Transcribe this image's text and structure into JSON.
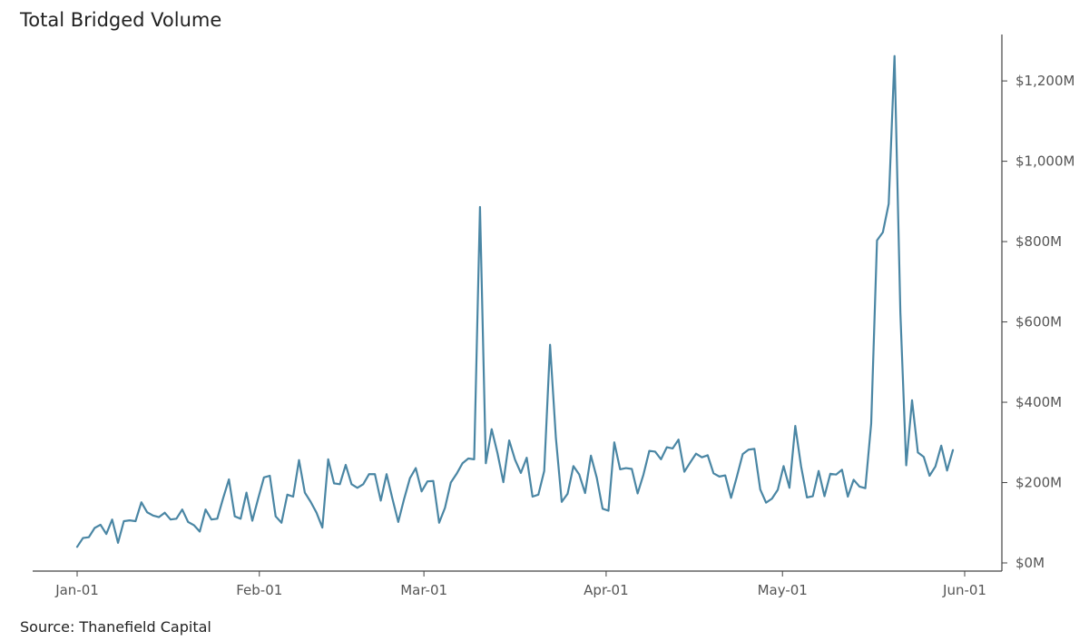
{
  "chart_data": {
    "type": "line",
    "title": "Total Bridged Volume",
    "source": "Source: Thanefield Capital",
    "xlabel": "",
    "ylabel": "",
    "y_unit": "USD millions",
    "ylim": [
      0,
      1300
    ],
    "x_ticks": [
      "Jan-01",
      "Feb-01",
      "Mar-01",
      "Apr-01",
      "May-01",
      "Jun-01"
    ],
    "y_ticks": [
      0,
      200,
      400,
      600,
      800,
      1000,
      1200
    ],
    "y_tick_labels": [
      "$0M",
      "$200M",
      "$400M",
      "$600M",
      "$800M",
      "$1,000M",
      "$1,200M"
    ],
    "y_axis_position": "right",
    "grid": false,
    "legend": "none",
    "line_color": "#4a86a4",
    "x_start": "2021-01-01",
    "x_end": "2021-05-29",
    "series": [
      {
        "values": [
          40,
          62,
          64,
          87,
          95,
          72,
          108,
          50,
          104,
          106,
          104,
          151,
          126,
          118,
          114,
          125,
          108,
          110,
          133,
          102,
          94,
          78,
          133,
          108,
          110,
          161,
          208,
          116,
          110,
          175,
          105,
          160,
          213,
          217,
          116,
          100,
          170,
          165,
          256,
          175,
          152,
          125,
          88,
          258,
          198,
          196,
          244,
          196,
          187,
          196,
          221,
          221,
          155,
          221,
          160,
          102,
          159,
          211,
          236,
          178,
          203,
          204,
          100,
          137,
          200,
          222,
          248,
          260,
          258,
          886,
          248,
          333,
          273,
          201,
          305,
          257,
          224,
          262,
          165,
          170,
          229,
          543,
          311,
          152,
          172,
          241,
          220,
          174,
          267,
          212,
          135,
          130,
          300,
          233,
          236,
          234,
          173,
          220,
          279,
          277,
          258,
          288,
          285,
          307,
          227,
          250,
          272,
          263,
          268,
          223,
          215,
          218,
          162,
          215,
          271,
          282,
          284,
          183,
          150,
          160,
          182,
          241,
          187,
          341,
          240,
          163,
          166,
          229,
          166,
          222,
          220,
          232,
          165,
          207,
          190,
          186,
          347,
          803,
          823,
          894,
          1262,
          623,
          243,
          405,
          275,
          264,
          217,
          240,
          292,
          230,
          281
        ]
      }
    ]
  }
}
